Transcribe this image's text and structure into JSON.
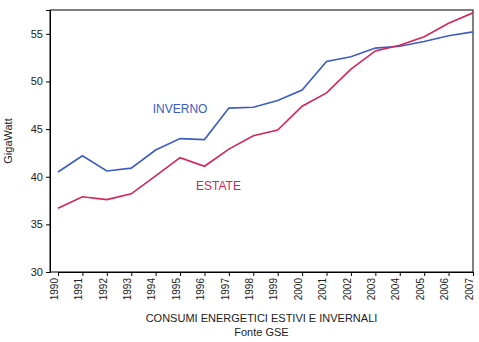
{
  "chart_data": {
    "type": "line",
    "title": "CONSUMI ENERGETICI ESTIVI E INVERNALI",
    "subtitle": "Fonte GSE",
    "y_label": "GigaWatt",
    "categories": [
      "1990",
      "1991",
      "1992",
      "1993",
      "1994",
      "1995",
      "1996",
      "1997",
      "1998",
      "1999",
      "2000",
      "2001",
      "2002",
      "2003",
      "2004",
      "2005",
      "2006",
      "2007"
    ],
    "series": [
      {
        "name": "INVERNO",
        "color": "#3c5cc4",
        "values": [
          40.5,
          42.2,
          40.6,
          40.9,
          42.8,
          44.0,
          43.9,
          47.2,
          47.3,
          48.0,
          49.1,
          52.1,
          52.6,
          53.5,
          53.7,
          54.2,
          54.8,
          55.2
        ]
      },
      {
        "name": "ESTATE",
        "color": "#d4245a",
        "values": [
          36.7,
          37.9,
          37.6,
          38.2,
          40.1,
          42.0,
          41.1,
          42.9,
          44.3,
          44.9,
          47.4,
          48.8,
          51.3,
          53.2,
          53.8,
          54.7,
          56.1,
          57.2
        ]
      }
    ],
    "ylim": [
      30,
      57.5
    ],
    "yticks": [
      30,
      35,
      40,
      45,
      50,
      55
    ],
    "grid": false
  }
}
